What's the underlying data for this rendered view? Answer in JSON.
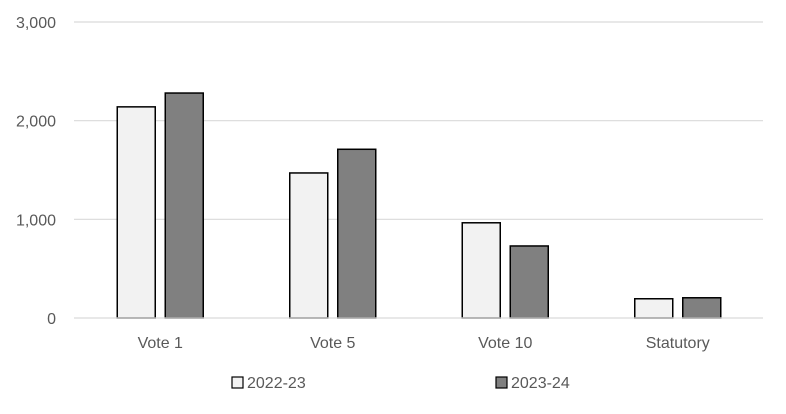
{
  "chart_data": {
    "type": "bar",
    "categories": [
      "Vote 1",
      "Vote 5",
      "Vote 10",
      "Statutory"
    ],
    "series": [
      {
        "name": "2022-23",
        "values": [
          2140,
          1470,
          965,
          195
        ],
        "color": "#f2f2f2"
      },
      {
        "name": "2023-24",
        "values": [
          2280,
          1710,
          730,
          205
        ],
        "color": "#808080"
      }
    ],
    "y_ticks": [
      {
        "value": 0,
        "label": "0"
      },
      {
        "value": 1000,
        "label": "1,000"
      },
      {
        "value": 2000,
        "label": "2,000"
      },
      {
        "value": 3000,
        "label": "3,000"
      }
    ],
    "ylim": [
      0,
      3000
    ],
    "grid": true,
    "legend_position": "bottom",
    "gridline_color": "#d9d9d9",
    "bar_outline_color": "#000000"
  }
}
